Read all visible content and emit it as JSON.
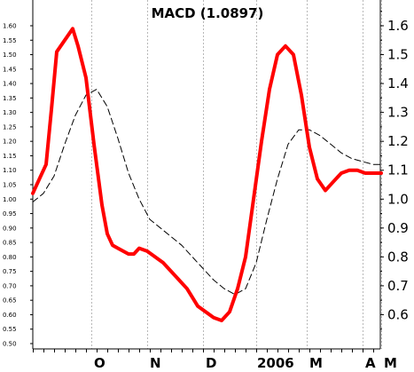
{
  "chart_data": {
    "type": "line",
    "title": "MACD (1.0897)",
    "left_axis_ticks": [
      "1.60",
      "1.55",
      "1.50",
      "1.45",
      "1.40",
      "1.35",
      "1.30",
      "1.25",
      "1.20",
      "1.15",
      "1.10",
      "1.05",
      "1.00",
      "0.95",
      "0.90",
      "0.85",
      "0.80",
      "0.75",
      "0.70",
      "0.65",
      "0.60",
      "0.55",
      "0.50"
    ],
    "right_axis_ticks": [
      "1.6",
      "1.5",
      "1.4",
      "1.3",
      "1.2",
      "1.1",
      "1.0",
      "0.9",
      "0.8",
      "0.7",
      "0.6"
    ],
    "ylim": [
      0.49,
      1.665
    ],
    "x_labels": [
      "O",
      "N",
      "D",
      "2006",
      "M",
      "A",
      "M"
    ],
    "grid": "vertical dashed at month boundaries",
    "series": [
      {
        "color": "#ff0000",
        "style": "thick solid",
        "x": [
          0,
          2,
          5,
          7,
          9,
          12,
          15,
          17,
          20,
          23,
          26,
          28,
          30,
          32,
          34,
          36,
          38,
          40,
          43,
          46,
          49,
          52,
          55,
          58,
          60,
          62,
          65,
          68,
          71,
          74,
          77,
          80,
          83,
          86,
          89,
          92,
          95,
          98,
          101,
          104,
          107,
          110,
          113,
          116,
          119,
          122,
          125,
          128,
          131
        ],
        "values": [
          1.02,
          1.06,
          1.12,
          1.31,
          1.51,
          1.55,
          1.59,
          1.53,
          1.42,
          1.19,
          0.98,
          0.88,
          0.84,
          0.83,
          0.82,
          0.81,
          0.81,
          0.83,
          0.82,
          0.8,
          0.78,
          0.75,
          0.72,
          0.69,
          0.66,
          0.63,
          0.61,
          0.59,
          0.58,
          0.61,
          0.69,
          0.8,
          1.0,
          1.2,
          1.38,
          1.5,
          1.53,
          1.5,
          1.36,
          1.18,
          1.07,
          1.03,
          1.06,
          1.09,
          1.1,
          1.1,
          1.09,
          1.09,
          1.09
        ]
      },
      {
        "color": "#000000",
        "style": "dashed",
        "x": [
          0,
          4,
          8,
          12,
          16,
          20,
          24,
          28,
          32,
          36,
          40,
          44,
          48,
          52,
          56,
          60,
          64,
          68,
          72,
          76,
          80,
          84,
          88,
          92,
          96,
          100,
          104,
          108,
          112,
          116,
          120,
          124,
          128,
          131
        ],
        "values": [
          0.99,
          1.02,
          1.08,
          1.19,
          1.29,
          1.36,
          1.38,
          1.32,
          1.21,
          1.09,
          1.0,
          0.93,
          0.9,
          0.87,
          0.84,
          0.8,
          0.76,
          0.72,
          0.69,
          0.67,
          0.69,
          0.78,
          0.93,
          1.07,
          1.19,
          1.24,
          1.24,
          1.22,
          1.19,
          1.16,
          1.14,
          1.13,
          1.12,
          1.12
        ]
      }
    ],
    "x_axis": {
      "min": 0,
      "max": 131,
      "month_boundaries": [
        22,
        43,
        64,
        84,
        103,
        124,
        131
      ]
    }
  },
  "colors": {
    "macd_line": "#ff0000",
    "signal_line": "#000000",
    "grid": "#b0b0b0",
    "axis": "#000000"
  }
}
